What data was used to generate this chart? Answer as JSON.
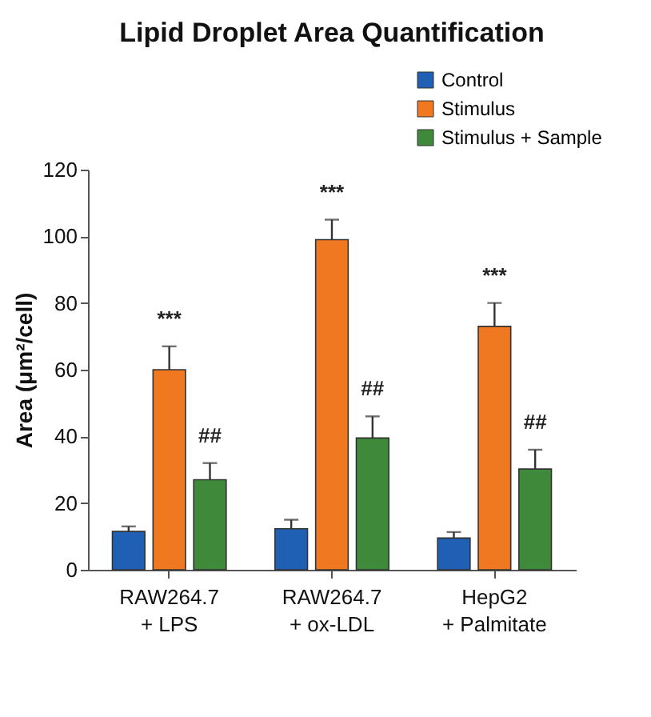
{
  "chart_data": {
    "type": "bar",
    "title": "Lipid Droplet Area Quantification",
    "ylabel": "Area (μm²/cell)",
    "categories": [
      "RAW264.7\n+ LPS",
      "RAW264.7\n+ ox-LDL",
      "HepG2\n+ Palmitate"
    ],
    "series": [
      {
        "name": "Control",
        "color": "#1f5fb4",
        "values": [
          11.5,
          12.3,
          9.5
        ],
        "errors": [
          1.5,
          2.7,
          1.8
        ]
      },
      {
        "name": "Stimulus",
        "color": "#f07820",
        "values": [
          60,
          99,
          73
        ],
        "errors": [
          7,
          6,
          7
        ],
        "value_labels": [
          "***",
          "***",
          "***"
        ]
      },
      {
        "name": "Stimulus + Sample",
        "color": "#3f8a3a",
        "values": [
          27,
          39.5,
          30.2
        ],
        "errors": [
          5,
          6.5,
          5.8
        ],
        "value_labels": [
          "##",
          "##",
          "##"
        ]
      }
    ],
    "ylim": [
      0,
      120
    ],
    "yticks": [
      0,
      20,
      40,
      60,
      80,
      100,
      120
    ],
    "grid": false,
    "legend": "top right"
  }
}
